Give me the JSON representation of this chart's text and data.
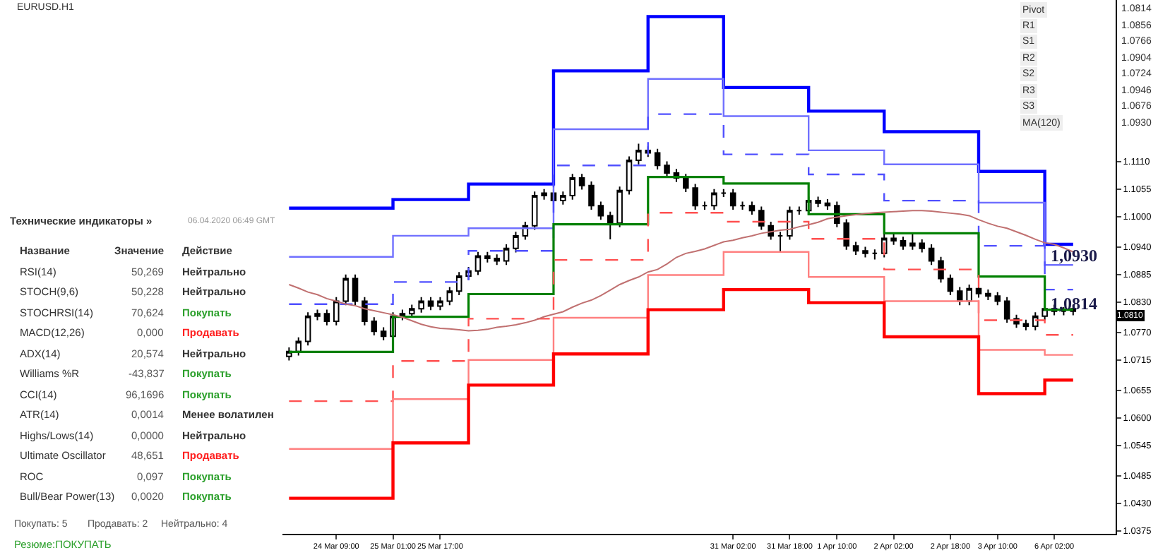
{
  "chart_data": {
    "type": "candlestick",
    "categories": [
      null,
      null,
      null,
      null,
      null,
      "24 Mar 09:00",
      null,
      null,
      null,
      null,
      null,
      "25 Mar 01:00",
      null,
      null,
      null,
      null,
      "25 Mar 17:00",
      null,
      null,
      null,
      null,
      null,
      null,
      null,
      null,
      null,
      null,
      null,
      null,
      null,
      null,
      null,
      null,
      null,
      null,
      null,
      null,
      null,
      null,
      null,
      null,
      null,
      null,
      null,
      null,
      null,
      null,
      "31 Mar 02:00",
      null,
      null,
      null,
      null,
      null,
      "31 Mar 18:00",
      null,
      null,
      null,
      null,
      "1 Apr 10:00",
      null,
      null,
      null,
      null,
      null,
      "2 Apr 02:00",
      null,
      null,
      null,
      null,
      null,
      "2 Apr 18:00",
      null,
      null,
      null,
      null,
      "3 Apr 10:00",
      null,
      null,
      null,
      null,
      null,
      "6 Apr 02:00",
      null,
      null
    ],
    "ohlc": [
      [
        1.0722,
        1.074,
        1.0714,
        1.0732
      ],
      [
        1.0732,
        1.076,
        1.0724,
        1.0752
      ],
      [
        1.0752,
        1.081,
        1.0744,
        1.0802
      ],
      [
        1.0802,
        1.0815,
        1.0794,
        1.0807
      ],
      [
        1.0807,
        1.0815,
        1.0784,
        1.0792
      ],
      [
        1.0792,
        1.084,
        1.0784,
        1.0832
      ],
      [
        1.0832,
        1.0885,
        1.0824,
        1.0877
      ],
      [
        1.0877,
        1.0885,
        1.0824,
        1.0832
      ],
      [
        1.0832,
        1.084,
        1.0784,
        1.0792
      ],
      [
        1.0792,
        1.08,
        1.0764,
        1.0772
      ],
      [
        1.0772,
        1.078,
        1.0754,
        1.0762
      ],
      [
        1.0762,
        1.081,
        1.0754,
        1.0802
      ],
      [
        1.0802,
        1.0815,
        1.0794,
        1.0807
      ],
      [
        1.0807,
        1.0825,
        1.0799,
        1.0817
      ],
      [
        1.0817,
        1.084,
        1.0809,
        1.0832
      ],
      [
        1.0832,
        1.084,
        1.0814,
        1.0822
      ],
      [
        1.0822,
        1.084,
        1.0814,
        1.0832
      ],
      [
        1.0832,
        1.086,
        1.0824,
        1.0852
      ],
      [
        1.0852,
        1.089,
        1.0844,
        1.0882
      ],
      [
        1.0882,
        1.09,
        1.0874,
        1.0892
      ],
      [
        1.0892,
        1.093,
        1.0884,
        1.0922
      ],
      [
        1.0922,
        1.093,
        1.0909,
        1.0917
      ],
      [
        1.0917,
        1.0925,
        1.0904,
        1.0912
      ],
      [
        1.0912,
        1.0945,
        1.0904,
        1.0937
      ],
      [
        1.0937,
        1.097,
        1.0929,
        1.0962
      ],
      [
        1.0962,
        1.099,
        1.0954,
        1.0982
      ],
      [
        1.0982,
        1.105,
        1.0974,
        1.1042
      ],
      [
        1.1042,
        1.1055,
        1.1034,
        1.1047
      ],
      [
        1.1047,
        1.1055,
        1.1024,
        1.1032
      ],
      [
        1.1032,
        1.105,
        1.1024,
        1.1042
      ],
      [
        1.1042,
        1.1085,
        1.1034,
        1.1077
      ],
      [
        1.1077,
        1.1085,
        1.1054,
        1.1062
      ],
      [
        1.1062,
        1.107,
        1.1014,
        1.1022
      ],
      [
        1.1022,
        1.103,
        1.0994,
        1.1002
      ],
      [
        1.1002,
        1.101,
        1.0955,
        1.0987
      ],
      [
        1.0987,
        1.106,
        1.0979,
        1.1052
      ],
      [
        1.1052,
        1.112,
        1.1044,
        1.1112
      ],
      [
        1.1112,
        1.1145,
        1.1104,
        1.1132
      ],
      [
        1.1132,
        1.114,
        1.1119,
        1.1127
      ],
      [
        1.1127,
        1.1135,
        1.1094,
        1.1102
      ],
      [
        1.1102,
        1.111,
        1.1079,
        1.1087
      ],
      [
        1.1087,
        1.1095,
        1.1069,
        1.1077
      ],
      [
        1.1077,
        1.1085,
        1.1049,
        1.1057
      ],
      [
        1.1057,
        1.1065,
        1.1014,
        1.1022
      ],
      [
        1.1022,
        1.103,
        1.1014,
        1.1022
      ],
      [
        1.1022,
        1.1055,
        1.1014,
        1.1047
      ],
      [
        1.1047,
        1.1055,
        1.1039,
        1.1047
      ],
      [
        1.1047,
        1.1055,
        1.1014,
        1.1022
      ],
      [
        1.1022,
        1.103,
        1.1014,
        1.1022
      ],
      [
        1.1022,
        1.103,
        1.1004,
        1.1012
      ],
      [
        1.1012,
        1.102,
        1.0974,
        1.0982
      ],
      [
        1.0982,
        1.099,
        1.0954,
        1.0962
      ],
      [
        1.0962,
        1.097,
        1.093,
        1.0962
      ],
      [
        1.0962,
        1.102,
        1.0954,
        1.1012
      ],
      [
        1.1012,
        1.102,
        1.1004,
        1.1012
      ],
      [
        1.1012,
        1.104,
        1.1004,
        1.1032
      ],
      [
        1.1032,
        1.104,
        1.1019,
        1.1027
      ],
      [
        1.1027,
        1.1035,
        1.1014,
        1.1022
      ],
      [
        1.1022,
        1.103,
        1.0979,
        1.0987
      ],
      [
        1.0987,
        1.0995,
        1.0934,
        1.0942
      ],
      [
        1.0942,
        1.095,
        1.0924,
        1.0932
      ],
      [
        1.0932,
        1.094,
        1.0919,
        1.0927
      ],
      [
        1.0927,
        1.0935,
        1.0915,
        1.0927
      ],
      [
        1.0927,
        1.0965,
        1.0919,
        1.0957
      ],
      [
        1.0957,
        1.0965,
        1.0944,
        1.0952
      ],
      [
        1.0952,
        1.096,
        1.0934,
        1.0942
      ],
      [
        1.0942,
        1.0965,
        1.0934,
        1.0947
      ],
      [
        1.0947,
        1.0955,
        1.0929,
        1.0937
      ],
      [
        1.0937,
        1.0945,
        1.0904,
        1.0912
      ],
      [
        1.0912,
        1.092,
        1.0869,
        1.0877
      ],
      [
        1.0877,
        1.0885,
        1.0844,
        1.0852
      ],
      [
        1.0852,
        1.086,
        1.0824,
        1.0832
      ],
      [
        1.0832,
        1.0865,
        1.0824,
        1.0857
      ],
      [
        1.0857,
        1.0865,
        1.0839,
        1.0847
      ],
      [
        1.0847,
        1.0855,
        1.0834,
        1.0842
      ],
      [
        1.0842,
        1.085,
        1.0824,
        1.0832
      ],
      [
        1.0832,
        1.084,
        1.0789,
        1.0797
      ],
      [
        1.0797,
        1.0805,
        1.0779,
        1.0787
      ],
      [
        1.0787,
        1.0795,
        1.0774,
        1.0782
      ],
      [
        1.0782,
        1.081,
        1.0774,
        1.0802
      ],
      [
        1.0802,
        1.0825,
        1.0794,
        1.0817
      ],
      [
        1.0817,
        1.0825,
        1.0804,
        1.0812
      ],
      [
        1.0812,
        1.082,
        1.0804,
        1.0812
      ],
      [
        1.0812,
        1.0825,
        1.0804,
        1.0817
      ]
    ],
    "series": [
      {
        "type": "step",
        "color": "#0000ff",
        "values": [
          1.1017,
          1.1017,
          1.1017,
          1.1017,
          1.1017,
          1.1017,
          1.1017,
          1.1017,
          1.1017,
          1.1017,
          1.1017,
          1.1034,
          1.1034,
          1.1034,
          1.1034,
          1.1034,
          1.1034,
          1.1034,
          1.1034,
          1.1065,
          1.1065,
          1.1065,
          1.1065,
          1.1065,
          1.1065,
          1.1065,
          1.1065,
          1.1065,
          1.129,
          1.129,
          1.129,
          1.129,
          1.129,
          1.129,
          1.129,
          1.129,
          1.129,
          1.129,
          1.1398,
          1.1398,
          1.1398,
          1.1398,
          1.1398,
          1.1398,
          1.1398,
          1.1398,
          1.1257,
          1.1257,
          1.1257,
          1.1257,
          1.1257,
          1.1257,
          1.1257,
          1.1257,
          1.1257,
          1.121,
          1.121,
          1.121,
          1.121,
          1.121,
          1.121,
          1.121,
          1.121,
          1.1169,
          1.1169,
          1.1169,
          1.1169,
          1.1169,
          1.1169,
          1.1169,
          1.1169,
          1.1169,
          1.1169,
          1.109,
          1.109,
          1.109,
          1.109,
          1.109,
          1.109,
          1.109,
          1.0945,
          1.0945,
          1.0945,
          1.0945
        ]
      },
      {
        "type": "step",
        "color": "#7070ff",
        "values": [
          1.092,
          1.092,
          1.092,
          1.092,
          1.092,
          1.092,
          1.092,
          1.092,
          1.092,
          1.092,
          1.092,
          1.0962,
          1.0962,
          1.0962,
          1.0962,
          1.0962,
          1.0962,
          1.0962,
          1.0962,
          1.0977,
          1.0977,
          1.0977,
          1.0977,
          1.0977,
          1.0977,
          1.0977,
          1.0977,
          1.0977,
          1.1174,
          1.1174,
          1.1174,
          1.1174,
          1.1174,
          1.1174,
          1.1174,
          1.1174,
          1.1174,
          1.1174,
          1.1274,
          1.1274,
          1.1274,
          1.1274,
          1.1274,
          1.1274,
          1.1274,
          1.1274,
          1.12,
          1.12,
          1.12,
          1.12,
          1.12,
          1.12,
          1.12,
          1.12,
          1.12,
          1.1132,
          1.1132,
          1.1132,
          1.1132,
          1.1132,
          1.1132,
          1.1132,
          1.1132,
          1.1104,
          1.1104,
          1.1104,
          1.1104,
          1.1104,
          1.1104,
          1.1104,
          1.1104,
          1.1104,
          1.1104,
          1.1028,
          1.1028,
          1.1028,
          1.1028,
          1.1028,
          1.1028,
          1.1028,
          1.0904,
          1.0904,
          1.0904,
          1.0904
        ]
      },
      {
        "type": "step",
        "color": "#5050ff",
        "line_style": "dashed",
        "values": [
          1.0826,
          1.0826,
          1.0826,
          1.0826,
          1.0826,
          1.0826,
          1.0826,
          1.0826,
          1.0826,
          1.0826,
          1.0826,
          1.087,
          1.087,
          1.087,
          1.087,
          1.087,
          1.087,
          1.087,
          1.087,
          1.0932,
          1.0932,
          1.0932,
          1.0932,
          1.0932,
          1.0932,
          1.0932,
          1.0932,
          1.0932,
          1.1102,
          1.1102,
          1.1102,
          1.1102,
          1.1102,
          1.1102,
          1.1102,
          1.1102,
          1.1102,
          1.1102,
          1.1204,
          1.1204,
          1.1204,
          1.1204,
          1.1204,
          1.1204,
          1.1204,
          1.1204,
          1.1124,
          1.1124,
          1.1124,
          1.1124,
          1.1124,
          1.1124,
          1.1124,
          1.1124,
          1.1124,
          1.1084,
          1.1084,
          1.1084,
          1.1084,
          1.1084,
          1.1084,
          1.1084,
          1.1084,
          1.1032,
          1.1032,
          1.1032,
          1.1032,
          1.1032,
          1.1032,
          1.1032,
          1.1032,
          1.1032,
          1.1032,
          1.0942,
          1.0942,
          1.0942,
          1.0942,
          1.0942,
          1.0942,
          1.0942,
          1.0855,
          1.0855,
          1.0855,
          1.0855
        ]
      },
      {
        "type": "step",
        "color": "#008000",
        "values": [
          1.0731,
          1.0731,
          1.0731,
          1.0731,
          1.0731,
          1.0731,
          1.0731,
          1.0731,
          1.0731,
          1.0731,
          1.0731,
          1.0801,
          1.0801,
          1.0801,
          1.0801,
          1.0801,
          1.0801,
          1.0801,
          1.0801,
          1.0846,
          1.0846,
          1.0846,
          1.0846,
          1.0846,
          1.0846,
          1.0846,
          1.0846,
          1.0846,
          1.0985,
          1.0985,
          1.0985,
          1.0985,
          1.0985,
          1.0985,
          1.0985,
          1.0985,
          1.0985,
          1.0985,
          1.1079,
          1.1079,
          1.1079,
          1.1079,
          1.1079,
          1.1079,
          1.1079,
          1.1079,
          1.1066,
          1.1066,
          1.1066,
          1.1066,
          1.1066,
          1.1066,
          1.1066,
          1.1066,
          1.1066,
          1.1005,
          1.1005,
          1.1005,
          1.1005,
          1.1005,
          1.1005,
          1.1005,
          1.1005,
          1.0967,
          1.0967,
          1.0967,
          1.0967,
          1.0967,
          1.0967,
          1.0967,
          1.0967,
          1.0967,
          1.0967,
          1.0881,
          1.0881,
          1.0881,
          1.0881,
          1.0881,
          1.0881,
          1.0881,
          1.0815,
          1.0815,
          1.0815,
          1.0815
        ]
      },
      {
        "type": "step",
        "color": "#ff5050",
        "line_style": "dashed",
        "values": [
          1.0633,
          1.0633,
          1.0633,
          1.0633,
          1.0633,
          1.0633,
          1.0633,
          1.0633,
          1.0633,
          1.0633,
          1.0633,
          1.0713,
          1.0713,
          1.0713,
          1.0713,
          1.0713,
          1.0713,
          1.0713,
          1.0713,
          1.0797,
          1.0797,
          1.0797,
          1.0797,
          1.0797,
          1.0797,
          1.0797,
          1.0797,
          1.0797,
          1.0914,
          1.0914,
          1.0914,
          1.0914,
          1.0914,
          1.0914,
          1.0914,
          1.0914,
          1.0914,
          1.0914,
          1.1008,
          1.1008,
          1.1008,
          1.1008,
          1.1008,
          1.1008,
          1.1008,
          1.1008,
          1.099,
          1.099,
          1.099,
          1.099,
          1.099,
          1.099,
          1.099,
          1.099,
          1.099,
          1.0956,
          1.0956,
          1.0956,
          1.0956,
          1.0956,
          1.0956,
          1.0956,
          1.0956,
          1.0895,
          1.0895,
          1.0895,
          1.0895,
          1.0895,
          1.0895,
          1.0895,
          1.0895,
          1.0895,
          1.0895,
          1.0794,
          1.0794,
          1.0794,
          1.0794,
          1.0794,
          1.0794,
          1.0794,
          1.0765,
          1.0765,
          1.0765,
          1.0765
        ]
      },
      {
        "type": "step",
        "color": "#ff8080",
        "values": [
          1.0538,
          1.0538,
          1.0538,
          1.0538,
          1.0538,
          1.0538,
          1.0538,
          1.0538,
          1.0538,
          1.0538,
          1.0538,
          1.0637,
          1.0637,
          1.0637,
          1.0637,
          1.0637,
          1.0637,
          1.0637,
          1.0637,
          1.0715,
          1.0715,
          1.0715,
          1.0715,
          1.0715,
          1.0715,
          1.0715,
          1.0715,
          1.0715,
          1.0799,
          1.0799,
          1.0799,
          1.0799,
          1.0799,
          1.0799,
          1.0799,
          1.0799,
          1.0799,
          1.0799,
          1.0884,
          1.0884,
          1.0884,
          1.0884,
          1.0884,
          1.0884,
          1.0884,
          1.0884,
          1.093,
          1.093,
          1.093,
          1.093,
          1.093,
          1.093,
          1.093,
          1.093,
          1.093,
          1.088,
          1.088,
          1.088,
          1.088,
          1.088,
          1.088,
          1.088,
          1.088,
          1.0832,
          1.0832,
          1.0832,
          1.0832,
          1.0832,
          1.0832,
          1.0832,
          1.0832,
          1.0832,
          1.0832,
          1.0735,
          1.0735,
          1.0735,
          1.0735,
          1.0735,
          1.0735,
          1.0735,
          1.0725,
          1.0725,
          1.0725,
          1.0725
        ]
      },
      {
        "type": "step",
        "color": "#ff0000",
        "values": [
          1.044,
          1.044,
          1.044,
          1.044,
          1.044,
          1.044,
          1.044,
          1.044,
          1.044,
          1.044,
          1.044,
          1.055,
          1.055,
          1.055,
          1.055,
          1.055,
          1.055,
          1.055,
          1.055,
          1.0665,
          1.0665,
          1.0665,
          1.0665,
          1.0665,
          1.0665,
          1.0665,
          1.0665,
          1.0665,
          1.0727,
          1.0727,
          1.0727,
          1.0727,
          1.0727,
          1.0727,
          1.0727,
          1.0727,
          1.0727,
          1.0727,
          1.0815,
          1.0815,
          1.0815,
          1.0815,
          1.0815,
          1.0815,
          1.0815,
          1.0815,
          1.0855,
          1.0855,
          1.0855,
          1.0855,
          1.0855,
          1.0855,
          1.0855,
          1.0855,
          1.0855,
          1.0829,
          1.0829,
          1.0829,
          1.0829,
          1.0829,
          1.0829,
          1.0829,
          1.0829,
          1.0761,
          1.0761,
          1.0761,
          1.0761,
          1.0761,
          1.0761,
          1.0761,
          1.0761,
          1.0761,
          1.0761,
          1.0648,
          1.0648,
          1.0648,
          1.0648,
          1.0648,
          1.0648,
          1.0648,
          1.0675,
          1.0675,
          1.0675,
          1.0675
        ]
      },
      {
        "type": "line",
        "color": "#c07070",
        "values": [
          1.0865,
          1.0858,
          1.085,
          1.0845,
          1.0837,
          1.0832,
          1.0826,
          1.0823,
          1.0817,
          1.0813,
          1.0809,
          1.0805,
          1.08,
          1.0793,
          1.0786,
          1.0781,
          1.0778,
          1.0777,
          1.0775,
          1.0773,
          1.0774,
          1.0776,
          1.078,
          1.0782,
          1.0785,
          1.0789,
          1.0794,
          1.0801,
          1.0806,
          1.0811,
          1.082,
          1.0828,
          1.0834,
          1.0843,
          1.0854,
          1.0865,
          1.0873,
          1.088,
          1.089,
          1.0895,
          1.0906,
          1.0919,
          1.0927,
          1.0931,
          1.0936,
          1.0943,
          1.095,
          1.0953,
          1.0958,
          1.0962,
          1.0967,
          1.097,
          1.0973,
          1.0975,
          1.098,
          1.0984,
          1.0989,
          1.0996,
          1.0999,
          1.1002,
          1.1004,
          1.1006,
          1.1008,
          1.1009,
          1.101,
          1.1011,
          1.1012,
          1.1012,
          1.1011,
          1.1009,
          1.1007,
          1.1005,
          1.1002,
          1.0994,
          1.0987,
          1.0981,
          1.0977,
          1.097,
          1.0963,
          1.0955,
          1.0948,
          1.0945,
          1.0938,
          1.093
        ]
      }
    ],
    "ylim": [
      1.0369,
      1.1431
    ],
    "yticks": [
      {
        "value": 1.111,
        "label": "1.1110"
      },
      {
        "value": 1.1055,
        "label": "1.1055"
      },
      {
        "value": 1.1,
        "label": "1.1000"
      },
      {
        "value": 1.094,
        "label": "1.0940"
      },
      {
        "value": 1.0885,
        "label": "1.0885"
      },
      {
        "value": 1.083,
        "label": "1.0830"
      },
      {
        "value": 1.077,
        "label": "1.0770"
      },
      {
        "value": 1.0715,
        "label": "1.0715"
      },
      {
        "value": 1.0655,
        "label": "1.0655"
      },
      {
        "value": 1.06,
        "label": "1.0600"
      },
      {
        "value": 1.0545,
        "label": "1.0545"
      },
      {
        "value": 1.0485,
        "label": "1.0485"
      },
      {
        "value": 1.043,
        "label": "1.0430"
      },
      {
        "value": 1.0375,
        "label": "1.0375"
      }
    ],
    "annotations": [
      "EURUSD.H1",
      "Технические индикаторы »",
      "06.04.2020 06:49 GMT",
      "Название",
      "Значение",
      "Действие",
      "RSI(14)",
      "50,269",
      "Нейтрально",
      "STOCH(9,6)",
      "50,228",
      "Нейтрально",
      "STOCHRSI(14)",
      "70,624",
      "Покупать",
      "MACD(12,26)",
      "0,000",
      "Продавать",
      "ADX(14)",
      "20,574",
      "Нейтрально",
      "Williams %R",
      "-43,837",
      "Покупать",
      "CCI(14)",
      "96,1696",
      "Покупать",
      "ATR(14)",
      "0,0014",
      "Менее волатилен",
      "Highs/Lows(14)",
      "0,0000",
      "Нейтрально",
      "Ultimate Oscillator",
      "48,651",
      "Продавать",
      "ROC",
      "0,097",
      "Покупать",
      "Bull/Bear Power(13)",
      "0,0020",
      "Покупать",
      "Покупать: 5",
      "Продавать: 2",
      "Нейтрально: 4",
      "Резюме:ПОКУПАТЬ",
      "Pivot",
      "1.0814",
      "R1",
      "1.0856",
      "S1",
      "1.0766",
      "R2",
      "1.0904",
      "S2",
      "1.0724",
      "R3",
      "1.0946",
      "S3",
      "1.0676",
      "MA(120)",
      "1.0930",
      "1.0810",
      "1,0930",
      "1,0814"
    ]
  }
}
